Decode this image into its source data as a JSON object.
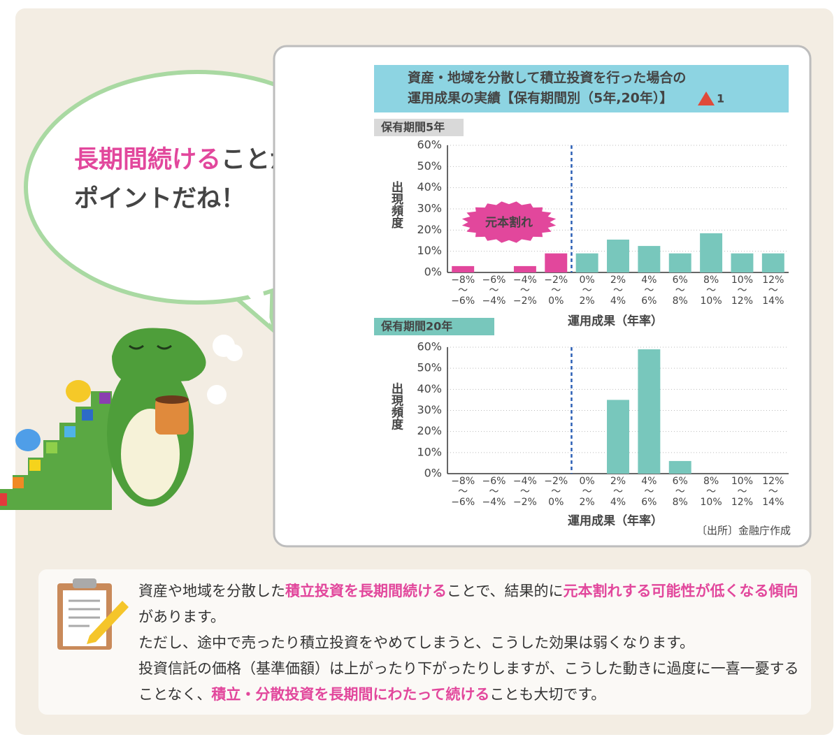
{
  "speech": {
    "line1": [
      {
        "text": "長期間続ける",
        "emphasis": true
      },
      {
        "text": "ことが",
        "emphasis": false
      }
    ],
    "line2": "ポイントだね！"
  },
  "header": {
    "lines": [
      "資産・地域を分散して積立投資を行った場合の",
      "運用成果の実績【保有期間別（5年,20年）】"
    ],
    "note_marker": "1"
  },
  "chart_data": [
    {
      "type": "bar",
      "subtitle": "保有期間5年",
      "ylabel": "出現頻度",
      "xlabel": "運用成果（年率）",
      "annotation": "元本割れ",
      "categories": [
        "−8%\n〜\n−6%",
        "−6%\n〜\n−4%",
        "−4%\n〜\n−2%",
        "−2%\n〜\n0%",
        "0%\n〜\n2%",
        "2%\n〜\n4%",
        "4%\n〜\n6%",
        "6%\n〜\n8%",
        "8%\n〜\n10%",
        "10%\n〜\n12%",
        "12%\n〜\n14%"
      ],
      "values": [
        3,
        0,
        3,
        9,
        9,
        15.5,
        12.5,
        9,
        18.5,
        9,
        9
      ],
      "colors": [
        "#e2479c",
        "#e2479c",
        "#e2479c",
        "#e2479c",
        "#78c7bc",
        "#78c7bc",
        "#78c7bc",
        "#78c7bc",
        "#78c7bc",
        "#78c7bc",
        "#78c7bc"
      ],
      "ylim": [
        0,
        60
      ],
      "yticks": [
        {
          "value": 0,
          "label": "0%"
        },
        {
          "value": 10,
          "label": "10%"
        },
        {
          "value": 20,
          "label": "20%"
        },
        {
          "value": 30,
          "label": "30%"
        },
        {
          "value": 40,
          "label": "40%"
        },
        {
          "value": 50,
          "label": "50%"
        },
        {
          "value": 60,
          "label": "60%"
        }
      ],
      "grid": true
    },
    {
      "type": "bar",
      "subtitle": "保有期間20年",
      "ylabel": "出現頻度",
      "xlabel": "運用成果（年率）",
      "categories": [
        "−8%\n〜\n−6%",
        "−6%\n〜\n−4%",
        "−4%\n〜\n−2%",
        "−2%\n〜\n0%",
        "0%\n〜\n2%",
        "2%\n〜\n4%",
        "4%\n〜\n6%",
        "6%\n〜\n8%",
        "8%\n〜\n10%",
        "10%\n〜\n12%",
        "12%\n〜\n14%"
      ],
      "values": [
        0,
        0,
        0,
        0,
        0,
        35,
        59,
        6,
        0,
        0,
        0
      ],
      "colors": [
        "#78c7bc",
        "#78c7bc",
        "#78c7bc",
        "#78c7bc",
        "#78c7bc",
        "#78c7bc",
        "#78c7bc",
        "#78c7bc",
        "#78c7bc",
        "#78c7bc",
        "#78c7bc"
      ],
      "ylim": [
        0,
        60
      ],
      "yticks": [
        {
          "value": 0,
          "label": "0%"
        },
        {
          "value": 10,
          "label": "10%"
        },
        {
          "value": 20,
          "label": "20%"
        },
        {
          "value": 30,
          "label": "30%"
        },
        {
          "value": 40,
          "label": "40%"
        },
        {
          "value": 50,
          "label": "50%"
        },
        {
          "value": 60,
          "label": "60%"
        }
      ],
      "grid": true
    }
  ],
  "source": "〔出所〕金融庁作成",
  "note": {
    "paragraphs": [
      [
        {
          "text": "資産や地域を分散した",
          "emphasis": false
        },
        {
          "text": "積立投資を長期間続ける",
          "emphasis": true
        },
        {
          "text": "ことで、結果的に",
          "emphasis": false
        },
        {
          "text": "元本割れする可能性が低くなる傾向",
          "emphasis": true
        },
        {
          "text": "があります。",
          "emphasis": false
        }
      ],
      [
        {
          "text": "ただし、途中で売ったり積立投資をやめてしまうと、こうした効果は弱くなります。",
          "emphasis": false
        }
      ],
      [
        {
          "text": "投資信託の価格（基準価額）は上がったり下がったりしますが、こうした動きに過度に一喜一憂することなく、",
          "emphasis": false
        },
        {
          "text": "積立・分散投資を長期間にわたって続ける",
          "emphasis": true
        },
        {
          "text": "ことも大切です。",
          "emphasis": false
        }
      ]
    ]
  }
}
